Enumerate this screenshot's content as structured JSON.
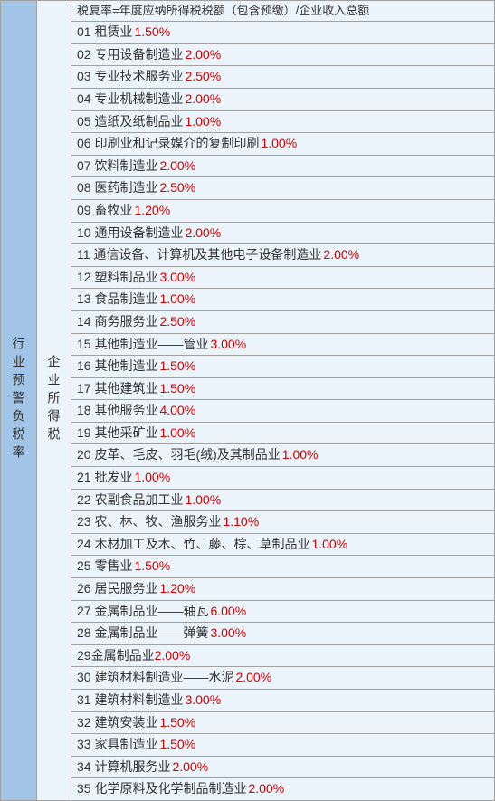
{
  "leftLabel": "行业预警负税率",
  "midLabel": "企业所得税",
  "headerText": "税复率=年度应纳所得税税额（包含预缴）/企业收入总额",
  "leftBg": "#a2c4e6",
  "midBg": "#ecf4fb",
  "rightBg": "#ecf4fb",
  "borderColor": "#a0a0a0",
  "rateColor": "#d00000",
  "rows": [
    {
      "num": "01",
      "name": "租赁业",
      "rate": "1.50%"
    },
    {
      "num": "02",
      "name": "专用设备制造业",
      "rate": "2.00%"
    },
    {
      "num": "03",
      "name": "专业技术服务业",
      "rate": "2.50%"
    },
    {
      "num": "04",
      "name": "专业机械制造业",
      "rate": "2.00%"
    },
    {
      "num": "05",
      "name": "造纸及纸制品业",
      "rate": "1.00%"
    },
    {
      "num": "06",
      "name": "印刷业和记录媒介的复制印刷",
      "rate": "1.00%"
    },
    {
      "num": "07",
      "name": "饮料制造业",
      "rate": "2.00%"
    },
    {
      "num": "08",
      "name": "医药制造业",
      "rate": "2.50%"
    },
    {
      "num": "09",
      "name": "畜牧业",
      "rate": "1.20%"
    },
    {
      "num": "10",
      "name": "通用设备制造业",
      "rate": "2.00%"
    },
    {
      "num": "11",
      "name": "通信设备、计算机及其他电子设备制造业",
      "rate": "2.00%"
    },
    {
      "num": "12",
      "name": "塑料制品业",
      "rate": "3.00%"
    },
    {
      "num": "13",
      "name": "食品制造业",
      "rate": "1.00%"
    },
    {
      "num": "14",
      "name": "商务服务业",
      "rate": "2.50%"
    },
    {
      "num": "15",
      "name": "其他制造业——管业",
      "rate": "3.00%"
    },
    {
      "num": "16",
      "name": "其他制造业",
      "rate": "1.50%"
    },
    {
      "num": "17",
      "name": "其他建筑业",
      "rate": "1.50%"
    },
    {
      "num": "18",
      "name": "其他服务业",
      "rate": "4.00%"
    },
    {
      "num": "19",
      "name": "其他采矿业",
      "rate": "1.00%"
    },
    {
      "num": "20",
      "name": "皮革、毛皮、羽毛(绒)及其制品业",
      "rate": "1.00%"
    },
    {
      "num": "21",
      "name": "批发业",
      "rate": "1.00%"
    },
    {
      "num": "22",
      "name": "农副食品加工业",
      "rate": "1.00%"
    },
    {
      "num": "23",
      "name": "农、林、牧、渔服务业",
      "rate": "1.10%"
    },
    {
      "num": "24",
      "name": "木材加工及木、竹、藤、棕、草制品业",
      "rate": "1.00%"
    },
    {
      "num": "25",
      "name": "零售业",
      "rate": "1.50%"
    },
    {
      "num": "26",
      "name": "居民服务业",
      "rate": "1.20%"
    },
    {
      "num": "27",
      "name": "金属制品业——轴瓦",
      "rate": "6.00%"
    },
    {
      "num": "28",
      "name": "金属制品业——弹簧",
      "rate": "3.00%"
    },
    {
      "num": "29",
      "name": "金属制品业",
      "rate": "2.00%",
      "noSpace": true
    },
    {
      "num": "30",
      "name": "建筑材料制造业——水泥",
      "rate": "2.00%"
    },
    {
      "num": "31",
      "name": "建筑材料制造业",
      "rate": "3.00%"
    },
    {
      "num": "32",
      "name": "建筑安装业",
      "rate": "1.50%"
    },
    {
      "num": "33",
      "name": "家具制造业",
      "rate": "1.50%"
    },
    {
      "num": "34",
      "name": "计算机服务业",
      "rate": "2.00%"
    },
    {
      "num": "35",
      "name": "化学原料及化学制品制造业",
      "rate": "2.00%"
    }
  ]
}
